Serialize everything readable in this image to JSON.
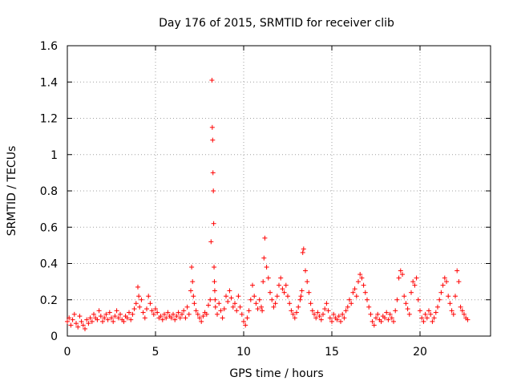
{
  "chart_data": {
    "type": "scatter",
    "title": "Day 176 of 2015, SRMTID for receiver clib",
    "xlabel": "GPS time / hours",
    "ylabel": "SRMTID / TECUs",
    "xlim": [
      0,
      24
    ],
    "ylim": [
      0,
      1.6
    ],
    "xticks": [
      0,
      5,
      10,
      15,
      20
    ],
    "xtick_labels": [
      "0",
      "5",
      "10",
      "15",
      "20"
    ],
    "yticks": [
      0,
      0.2,
      0.4,
      0.6,
      0.8,
      1,
      1.2,
      1.4,
      1.6
    ],
    "ytick_labels": [
      "0",
      "0.2",
      "0.4",
      "0.6",
      "0.8",
      "1",
      "1.2",
      "1.4",
      "1.6"
    ],
    "grid": true,
    "marker": "+",
    "series": [
      {
        "name": "SRMTID",
        "color": "#ff0000",
        "x": [
          0.0,
          0.1,
          0.2,
          0.3,
          0.4,
          0.5,
          0.6,
          0.7,
          0.8,
          0.9,
          1.0,
          1.1,
          1.2,
          1.3,
          1.4,
          1.5,
          1.6,
          1.7,
          1.8,
          1.9,
          2.0,
          2.1,
          2.2,
          2.3,
          2.4,
          2.5,
          2.6,
          2.7,
          2.8,
          2.9,
          3.0,
          3.1,
          3.2,
          3.3,
          3.4,
          3.5,
          3.6,
          3.7,
          3.8,
          3.9,
          4.0,
          4.05,
          4.1,
          4.2,
          4.3,
          4.4,
          4.5,
          4.6,
          4.7,
          4.8,
          4.9,
          5.0,
          5.1,
          5.2,
          5.3,
          5.4,
          5.5,
          5.6,
          5.7,
          5.8,
          5.9,
          6.0,
          6.1,
          6.2,
          6.3,
          6.4,
          6.5,
          6.6,
          6.7,
          6.8,
          6.9,
          7.0,
          7.05,
          7.1,
          7.15,
          7.2,
          7.3,
          7.4,
          7.5,
          7.6,
          7.7,
          7.8,
          7.9,
          8.0,
          8.1,
          8.15,
          8.2,
          8.22,
          8.24,
          8.26,
          8.28,
          8.3,
          8.32,
          8.34,
          8.36,
          8.38,
          8.4,
          8.5,
          8.6,
          8.7,
          8.8,
          8.9,
          9.0,
          9.1,
          9.2,
          9.3,
          9.4,
          9.5,
          9.6,
          9.7,
          9.8,
          9.9,
          10.0,
          10.1,
          10.2,
          10.3,
          10.4,
          10.5,
          10.6,
          10.7,
          10.8,
          10.9,
          11.0,
          11.05,
          11.1,
          11.15,
          11.2,
          11.3,
          11.4,
          11.5,
          11.6,
          11.7,
          11.8,
          11.9,
          12.0,
          12.1,
          12.2,
          12.3,
          12.4,
          12.5,
          12.6,
          12.7,
          12.8,
          12.9,
          13.0,
          13.1,
          13.2,
          13.25,
          13.3,
          13.35,
          13.4,
          13.5,
          13.6,
          13.7,
          13.8,
          13.9,
          14.0,
          14.1,
          14.2,
          14.3,
          14.4,
          14.5,
          14.6,
          14.7,
          14.8,
          14.9,
          15.0,
          15.1,
          15.2,
          15.3,
          15.4,
          15.5,
          15.6,
          15.7,
          15.8,
          15.9,
          16.0,
          16.1,
          16.2,
          16.3,
          16.4,
          16.5,
          16.6,
          16.7,
          16.8,
          16.9,
          17.0,
          17.1,
          17.2,
          17.3,
          17.4,
          17.5,
          17.6,
          17.7,
          17.8,
          17.9,
          18.0,
          18.1,
          18.2,
          18.3,
          18.4,
          18.5,
          18.6,
          18.7,
          18.8,
          18.9,
          19.0,
          19.1,
          19.2,
          19.3,
          19.4,
          19.5,
          19.6,
          19.7,
          19.8,
          19.9,
          20.0,
          20.1,
          20.2,
          20.3,
          20.4,
          20.5,
          20.6,
          20.7,
          20.8,
          20.9,
          21.0,
          21.1,
          21.2,
          21.3,
          21.4,
          21.5,
          21.6,
          21.7,
          21.8,
          21.9,
          22.0,
          22.1,
          22.2,
          22.3,
          22.4,
          22.5,
          22.6,
          22.7
        ],
        "y": [
          0.08,
          0.1,
          0.06,
          0.09,
          0.12,
          0.07,
          0.05,
          0.11,
          0.08,
          0.06,
          0.04,
          0.09,
          0.07,
          0.1,
          0.08,
          0.12,
          0.1,
          0.09,
          0.14,
          0.11,
          0.08,
          0.1,
          0.12,
          0.09,
          0.13,
          0.1,
          0.08,
          0.11,
          0.14,
          0.1,
          0.12,
          0.09,
          0.08,
          0.11,
          0.1,
          0.13,
          0.09,
          0.12,
          0.15,
          0.18,
          0.27,
          0.22,
          0.16,
          0.2,
          0.13,
          0.1,
          0.15,
          0.22,
          0.18,
          0.14,
          0.12,
          0.15,
          0.13,
          0.1,
          0.11,
          0.09,
          0.12,
          0.1,
          0.13,
          0.11,
          0.1,
          0.12,
          0.09,
          0.11,
          0.13,
          0.1,
          0.12,
          0.14,
          0.1,
          0.16,
          0.12,
          0.25,
          0.38,
          0.3,
          0.22,
          0.18,
          0.14,
          0.12,
          0.1,
          0.08,
          0.11,
          0.13,
          0.12,
          0.17,
          0.2,
          0.52,
          1.41,
          1.15,
          1.08,
          0.9,
          0.8,
          0.62,
          0.38,
          0.3,
          0.25,
          0.2,
          0.16,
          0.12,
          0.18,
          0.14,
          0.1,
          0.15,
          0.22,
          0.19,
          0.25,
          0.21,
          0.16,
          0.18,
          0.14,
          0.22,
          0.16,
          0.12,
          0.08,
          0.06,
          0.1,
          0.14,
          0.2,
          0.28,
          0.22,
          0.18,
          0.15,
          0.2,
          0.16,
          0.14,
          0.3,
          0.43,
          0.54,
          0.38,
          0.32,
          0.24,
          0.2,
          0.16,
          0.18,
          0.22,
          0.28,
          0.32,
          0.26,
          0.24,
          0.28,
          0.22,
          0.18,
          0.14,
          0.12,
          0.1,
          0.13,
          0.16,
          0.2,
          0.22,
          0.25,
          0.46,
          0.48,
          0.36,
          0.3,
          0.24,
          0.18,
          0.14,
          0.12,
          0.1,
          0.13,
          0.11,
          0.09,
          0.12,
          0.15,
          0.18,
          0.14,
          0.1,
          0.08,
          0.12,
          0.1,
          0.09,
          0.11,
          0.08,
          0.12,
          0.1,
          0.14,
          0.16,
          0.2,
          0.18,
          0.24,
          0.26,
          0.22,
          0.3,
          0.34,
          0.32,
          0.28,
          0.24,
          0.2,
          0.16,
          0.12,
          0.08,
          0.06,
          0.1,
          0.12,
          0.09,
          0.08,
          0.11,
          0.1,
          0.13,
          0.09,
          0.12,
          0.1,
          0.08,
          0.14,
          0.2,
          0.32,
          0.36,
          0.34,
          0.22,
          0.18,
          0.15,
          0.12,
          0.24,
          0.3,
          0.28,
          0.32,
          0.2,
          0.14,
          0.1,
          0.08,
          0.12,
          0.1,
          0.14,
          0.12,
          0.08,
          0.1,
          0.13,
          0.16,
          0.2,
          0.24,
          0.28,
          0.32,
          0.3,
          0.22,
          0.18,
          0.14,
          0.12,
          0.22,
          0.36,
          0.3,
          0.16,
          0.14,
          0.12,
          0.1,
          0.09
        ]
      }
    ]
  }
}
